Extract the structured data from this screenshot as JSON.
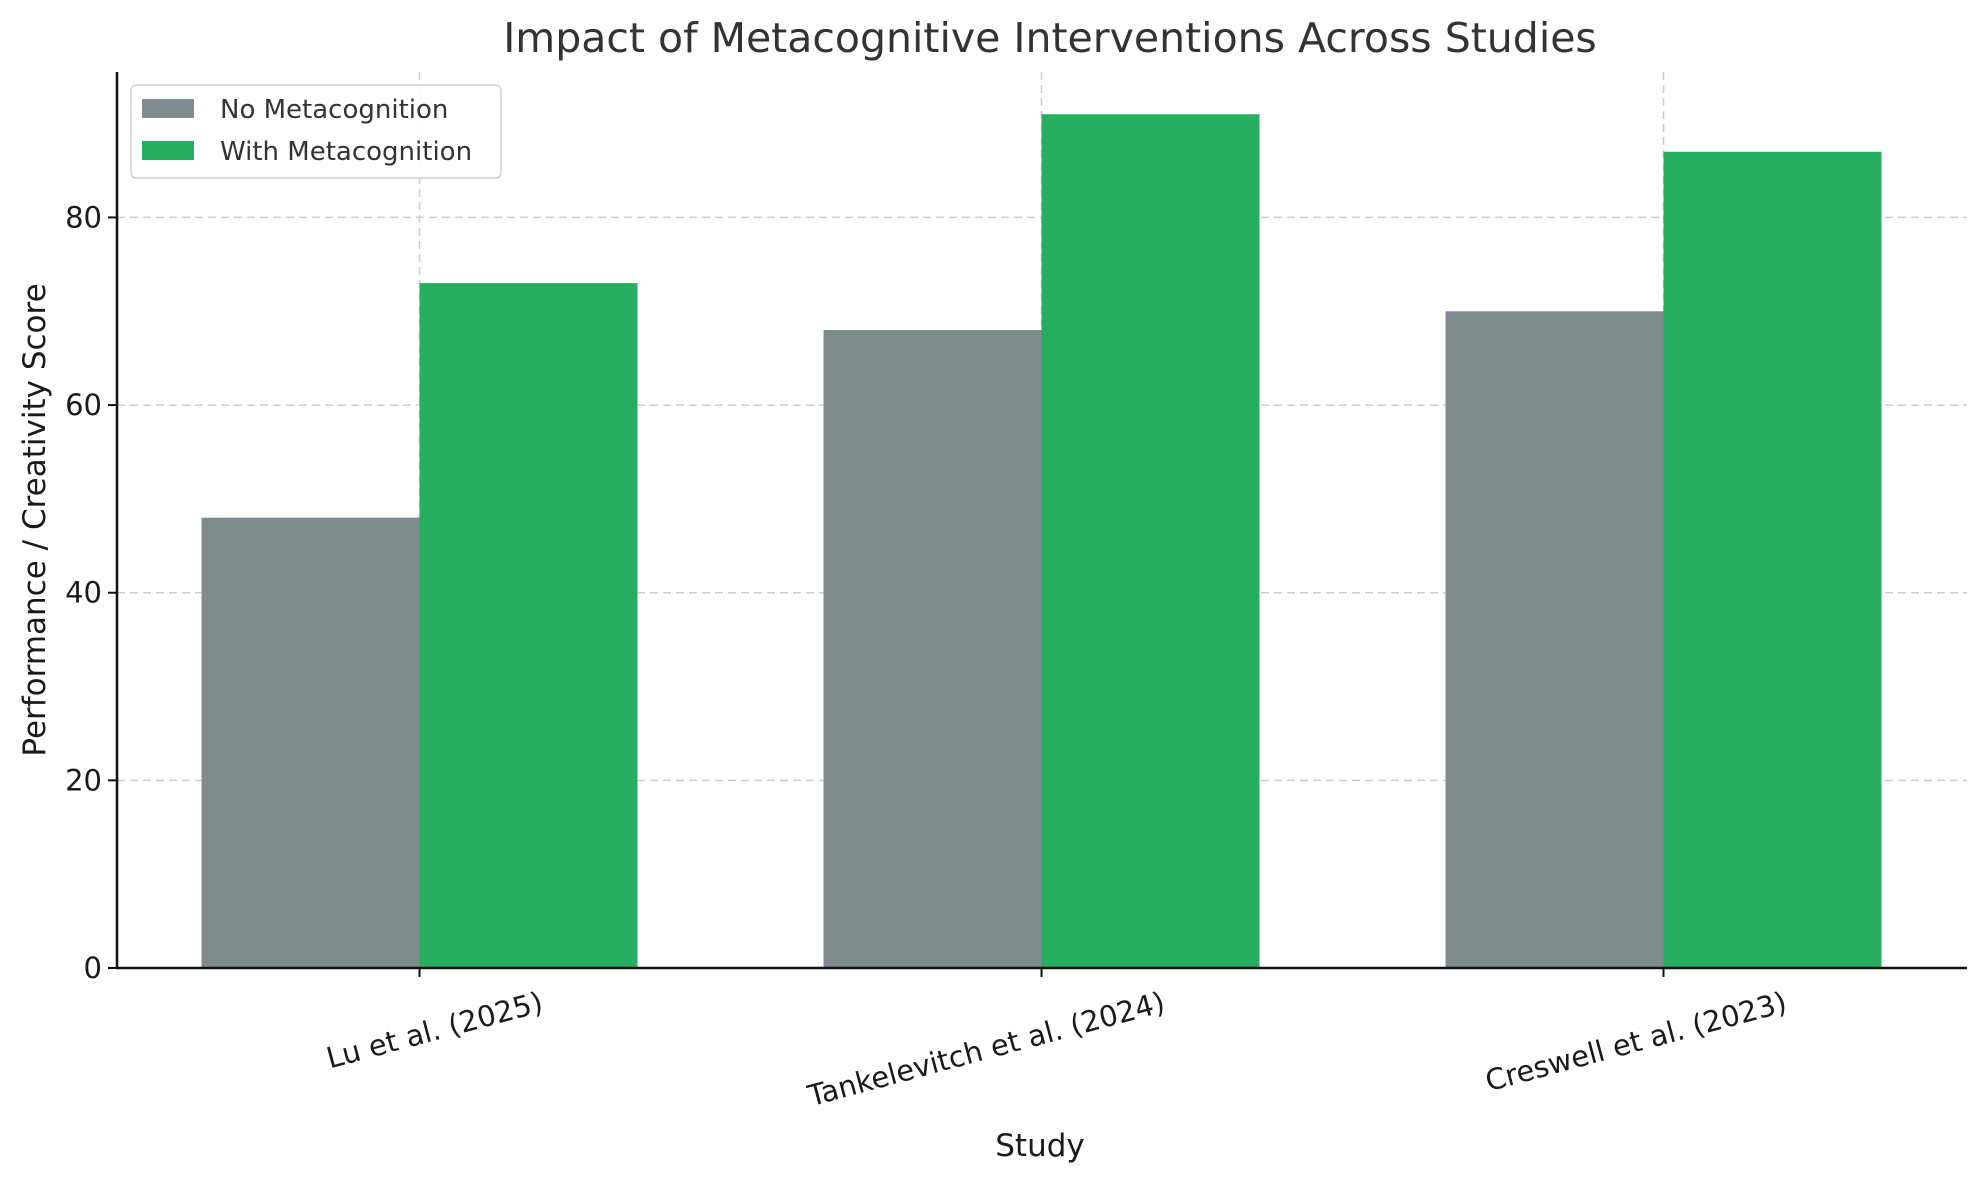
{
  "chart_data": {
    "type": "bar",
    "title": "Impact of Metacognitive Interventions Across Studies",
    "xlabel": "Study",
    "ylabel": "Performance / Creativity Score",
    "categories": [
      "Lu et al. (2025)",
      "Tankelevitch et al. (2024)",
      "Creswell et al. (2023)"
    ],
    "series": [
      {
        "name": "No Metacognition",
        "values": [
          48,
          68,
          70
        ],
        "color": "#7f8c8d"
      },
      {
        "name": "With Metacognition",
        "values": [
          73,
          91,
          87
        ],
        "color": "#27ae60"
      }
    ],
    "ylim": [
      0,
      95.5
    ],
    "yticks": [
      0,
      20,
      40,
      60,
      80
    ],
    "grid": true,
    "legend_position": "top-left"
  }
}
